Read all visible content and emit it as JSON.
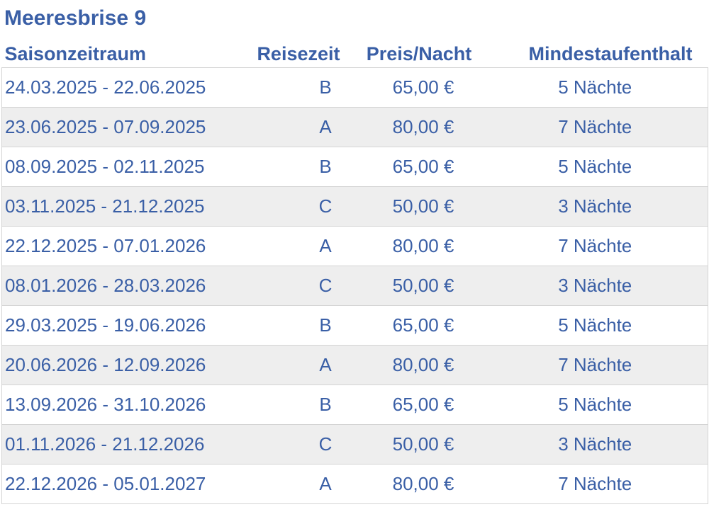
{
  "title": "Meeresbrise 9",
  "table": {
    "headers": [
      "Saisonzeitraum",
      "Reisezeit",
      "Preis/Nacht",
      "Mindestaufenthalt"
    ],
    "rows": [
      [
        "24.03.2025 - 22.06.2025",
        "B",
        "65,00 €",
        "5 Nächte"
      ],
      [
        "23.06.2025 - 07.09.2025",
        "A",
        "80,00 €",
        "7 Nächte"
      ],
      [
        "08.09.2025 - 02.11.2025",
        "B",
        "65,00 €",
        "5 Nächte"
      ],
      [
        "03.11.2025 - 21.12.2025",
        "C",
        "50,00 €",
        "3 Nächte"
      ],
      [
        "22.12.2025 - 07.01.2026",
        "A",
        "80,00 €",
        "7 Nächte"
      ],
      [
        "08.01.2026 - 28.03.2026",
        "C",
        "50,00 €",
        "3 Nächte"
      ],
      [
        "29.03.2025 - 19.06.2026",
        "B",
        "65,00 €",
        "5 Nächte"
      ],
      [
        "20.06.2026 - 12.09.2026",
        "A",
        "80,00 €",
        "7 Nächte"
      ],
      [
        "13.09.2026 - 31.10.2026",
        "B",
        "65,00 €",
        "5 Nächte"
      ],
      [
        "01.11.2026 - 21.12.2026",
        "C",
        "50,00 €",
        "3 Nächte"
      ],
      [
        "22.12.2026 - 05.01.2027",
        "A",
        "80,00 €",
        "7 Nächte"
      ]
    ]
  },
  "colors": {
    "text": "#3a5fa6",
    "row_alt_background": "#eeeeee",
    "border": "#d4d4d4"
  }
}
